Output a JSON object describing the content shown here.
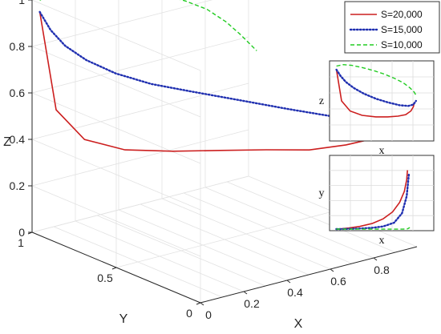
{
  "chart_data": [
    {
      "type": "line",
      "projection": "3d",
      "xlabel": "X",
      "ylabel": "Y",
      "zlabel": "Z",
      "xlim": [
        0,
        1
      ],
      "ylim": [
        0,
        1
      ],
      "zlim": [
        0,
        1
      ],
      "xticks": [
        "0",
        "0.2",
        "0.4",
        "0.6",
        "0.8"
      ],
      "yticks": [
        "0",
        "0.5",
        "1"
      ],
      "zticks": [
        "0",
        "0.2",
        "0.4",
        "0.6",
        "0.8",
        "1"
      ],
      "grid": true,
      "legend_position": "top-right",
      "series": [
        {
          "name": "S=20,000",
          "color": "#cc1f1f",
          "style": "solid",
          "x": [
            0.02,
            0.08,
            0.18,
            0.32,
            0.48,
            0.62,
            0.74,
            0.83,
            0.89,
            0.92,
            0.93
          ],
          "y": [
            0.98,
            0.96,
            0.92,
            0.86,
            0.78,
            0.68,
            0.56,
            0.42,
            0.28,
            0.15,
            0.05
          ],
          "z": [
            0.95,
            0.52,
            0.38,
            0.32,
            0.3,
            0.3,
            0.31,
            0.33,
            0.38,
            0.44,
            0.5
          ]
        },
        {
          "name": "S=15,000",
          "color": "#1f2fb0",
          "style": "dotted",
          "x": [
            0.02,
            0.07,
            0.13,
            0.22,
            0.34,
            0.48,
            0.62,
            0.76,
            0.86,
            0.92,
            0.95
          ],
          "y": [
            0.98,
            0.98,
            0.97,
            0.96,
            0.94,
            0.91,
            0.86,
            0.76,
            0.58,
            0.34,
            0.08
          ],
          "z": [
            0.95,
            0.86,
            0.78,
            0.7,
            0.62,
            0.55,
            0.5,
            0.46,
            0.45,
            0.47,
            0.52
          ]
        },
        {
          "name": "S=10,000",
          "color": "#22cc22",
          "style": "dashed",
          "x": [
            0.02,
            0.1,
            0.2,
            0.32,
            0.45,
            0.58,
            0.7,
            0.8,
            0.88,
            0.93,
            0.96
          ],
          "y": [
            0.98,
            0.99,
            0.99,
            0.99,
            0.99,
            0.99,
            0.99,
            0.99,
            0.98,
            0.96,
            0.9
          ],
          "z": [
            1.0,
            1.02,
            1.01,
            0.98,
            0.94,
            0.89,
            0.83,
            0.77,
            0.7,
            0.64,
            0.58
          ]
        }
      ]
    },
    {
      "type": "line",
      "panel": "inset-top",
      "xlabel": "x",
      "ylabel": "z",
      "legend": [
        {
          "name": "S=20,000",
          "color": "#cc1f1f",
          "style": "solid"
        },
        {
          "name": "S=15,000",
          "color": "#1f2fb0",
          "style": "dotted"
        },
        {
          "name": "S=10,000",
          "color": "#22cc22",
          "style": "dashed"
        }
      ]
    },
    {
      "type": "line",
      "panel": "inset-bottom",
      "xlabel": "x",
      "ylabel": "y"
    }
  ]
}
